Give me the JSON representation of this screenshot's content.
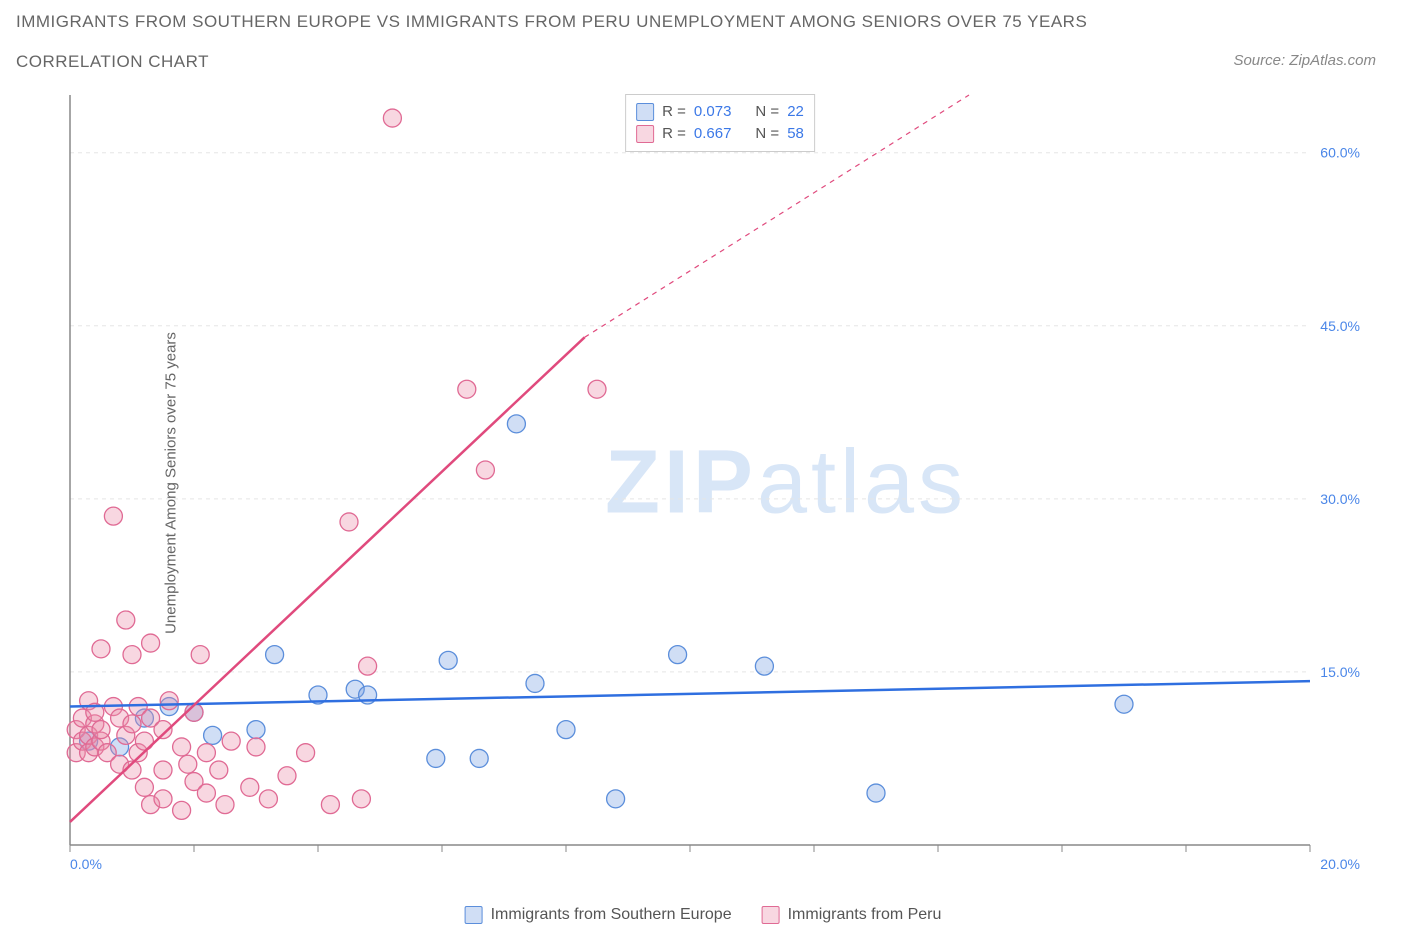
{
  "title_main": "IMMIGRANTS FROM SOUTHERN EUROPE VS IMMIGRANTS FROM PERU UNEMPLOYMENT AMONG SENIORS OVER 75 YEARS",
  "title_sub": "CORRELATION CHART",
  "source_label": "Source: ZipAtlas.com",
  "watermark_zip": "ZIP",
  "watermark_atlas": "atlas",
  "y_axis_label": "Unemployment Among Seniors over 75 years",
  "chart": {
    "type": "scatter",
    "background_color": "#ffffff",
    "grid_color": "#e5e5e5",
    "axis_color": "#888888",
    "xlim": [
      0,
      20
    ],
    "ylim": [
      0,
      65
    ],
    "x_ticks_minor": [
      0,
      2,
      4,
      6,
      8,
      10,
      12,
      14,
      16,
      18,
      20
    ],
    "x_tick_labels": [
      {
        "v": 0,
        "label": "0.0%"
      },
      {
        "v": 20,
        "label": "20.0%"
      }
    ],
    "y_ticks": [
      15,
      30,
      45,
      60
    ],
    "y_tick_labels": [
      "15.0%",
      "30.0%",
      "45.0%",
      "60.0%"
    ],
    "series": [
      {
        "id": "southern_europe",
        "label": "Immigrants from Southern Europe",
        "marker_color_fill": "rgba(120,160,225,0.35)",
        "marker_color_stroke": "#5b8edb",
        "marker_radius": 9,
        "line_color": "#2f6fe0",
        "line_width": 2.5,
        "R": "0.073",
        "N": "22",
        "trend": {
          "x1": 0,
          "y1": 12.0,
          "x2": 20,
          "y2": 14.2
        },
        "points": [
          {
            "x": 0.3,
            "y": 9.0
          },
          {
            "x": 0.8,
            "y": 8.5
          },
          {
            "x": 1.2,
            "y": 11.0
          },
          {
            "x": 1.6,
            "y": 12.0
          },
          {
            "x": 2.0,
            "y": 11.5
          },
          {
            "x": 2.3,
            "y": 9.5
          },
          {
            "x": 3.0,
            "y": 10.0
          },
          {
            "x": 3.3,
            "y": 16.5
          },
          {
            "x": 4.0,
            "y": 13.0
          },
          {
            "x": 4.6,
            "y": 13.5
          },
          {
            "x": 4.8,
            "y": 13.0
          },
          {
            "x": 5.9,
            "y": 7.5
          },
          {
            "x": 6.1,
            "y": 16.0
          },
          {
            "x": 6.6,
            "y": 7.5
          },
          {
            "x": 7.2,
            "y": 36.5
          },
          {
            "x": 7.5,
            "y": 14.0
          },
          {
            "x": 8.0,
            "y": 10.0
          },
          {
            "x": 8.8,
            "y": 4.0
          },
          {
            "x": 9.8,
            "y": 16.5
          },
          {
            "x": 11.2,
            "y": 15.5
          },
          {
            "x": 13.0,
            "y": 4.5
          },
          {
            "x": 17.0,
            "y": 12.2
          }
        ]
      },
      {
        "id": "peru",
        "label": "Immigrants from Peru",
        "marker_color_fill": "rgba(235,140,170,0.35)",
        "marker_color_stroke": "#e06a94",
        "marker_radius": 9,
        "line_color": "#e04a7d",
        "line_width": 2.5,
        "R": "0.667",
        "N": "58",
        "trend": {
          "x1": 0,
          "y1": 2.0,
          "x2": 8.3,
          "y2": 44.0
        },
        "trend_dash": {
          "x1": 8.3,
          "y1": 44.0,
          "x2": 14.5,
          "y2": 65.0
        },
        "points": [
          {
            "x": 0.1,
            "y": 8.0
          },
          {
            "x": 0.1,
            "y": 10.0
          },
          {
            "x": 0.2,
            "y": 9.0
          },
          {
            "x": 0.2,
            "y": 11.0
          },
          {
            "x": 0.3,
            "y": 8.0
          },
          {
            "x": 0.3,
            "y": 9.5
          },
          {
            "x": 0.3,
            "y": 12.5
          },
          {
            "x": 0.4,
            "y": 8.5
          },
          {
            "x": 0.4,
            "y": 10.5
          },
          {
            "x": 0.4,
            "y": 11.5
          },
          {
            "x": 0.5,
            "y": 9.0
          },
          {
            "x": 0.5,
            "y": 10.0
          },
          {
            "x": 0.5,
            "y": 17.0
          },
          {
            "x": 0.6,
            "y": 8.0
          },
          {
            "x": 0.7,
            "y": 12.0
          },
          {
            "x": 0.7,
            "y": 28.5
          },
          {
            "x": 0.8,
            "y": 7.0
          },
          {
            "x": 0.8,
            "y": 11.0
          },
          {
            "x": 0.9,
            "y": 9.5
          },
          {
            "x": 0.9,
            "y": 19.5
          },
          {
            "x": 1.0,
            "y": 6.5
          },
          {
            "x": 1.0,
            "y": 10.5
          },
          {
            "x": 1.0,
            "y": 16.5
          },
          {
            "x": 1.1,
            "y": 8.0
          },
          {
            "x": 1.1,
            "y": 12.0
          },
          {
            "x": 1.2,
            "y": 5.0
          },
          {
            "x": 1.2,
            "y": 9.0
          },
          {
            "x": 1.3,
            "y": 3.5
          },
          {
            "x": 1.3,
            "y": 11.0
          },
          {
            "x": 1.3,
            "y": 17.5
          },
          {
            "x": 1.5,
            "y": 4.0
          },
          {
            "x": 1.5,
            "y": 6.5
          },
          {
            "x": 1.5,
            "y": 10.0
          },
          {
            "x": 1.6,
            "y": 12.5
          },
          {
            "x": 1.8,
            "y": 3.0
          },
          {
            "x": 1.8,
            "y": 8.5
          },
          {
            "x": 1.9,
            "y": 7.0
          },
          {
            "x": 2.0,
            "y": 5.5
          },
          {
            "x": 2.0,
            "y": 11.5
          },
          {
            "x": 2.1,
            "y": 16.5
          },
          {
            "x": 2.2,
            "y": 4.5
          },
          {
            "x": 2.2,
            "y": 8.0
          },
          {
            "x": 2.4,
            "y": 6.5
          },
          {
            "x": 2.5,
            "y": 3.5
          },
          {
            "x": 2.6,
            "y": 9.0
          },
          {
            "x": 2.9,
            "y": 5.0
          },
          {
            "x": 3.0,
            "y": 8.5
          },
          {
            "x": 3.2,
            "y": 4.0
          },
          {
            "x": 3.5,
            "y": 6.0
          },
          {
            "x": 3.8,
            "y": 8.0
          },
          {
            "x": 4.2,
            "y": 3.5
          },
          {
            "x": 4.5,
            "y": 28.0
          },
          {
            "x": 4.7,
            "y": 4.0
          },
          {
            "x": 4.8,
            "y": 15.5
          },
          {
            "x": 5.2,
            "y": 63.0
          },
          {
            "x": 6.4,
            "y": 39.5
          },
          {
            "x": 6.7,
            "y": 32.5
          },
          {
            "x": 8.5,
            "y": 39.5
          }
        ]
      }
    ]
  },
  "legend_top": {
    "rows": [
      {
        "swatch_fill": "rgba(120,160,225,0.35)",
        "swatch_stroke": "#5b8edb",
        "R_label": "R =",
        "R": "0.073",
        "N_label": "N =",
        "N": "22"
      },
      {
        "swatch_fill": "rgba(235,140,170,0.35)",
        "swatch_stroke": "#e06a94",
        "R_label": "R =",
        "R": "0.667",
        "N_label": "N =",
        "N": "58"
      }
    ]
  },
  "legend_bottom": {
    "items": [
      {
        "swatch_fill": "rgba(120,160,225,0.35)",
        "swatch_stroke": "#5b8edb",
        "label": "Immigrants from Southern Europe"
      },
      {
        "swatch_fill": "rgba(235,140,170,0.35)",
        "swatch_stroke": "#e06a94",
        "label": "Immigrants from Peru"
      }
    ]
  }
}
